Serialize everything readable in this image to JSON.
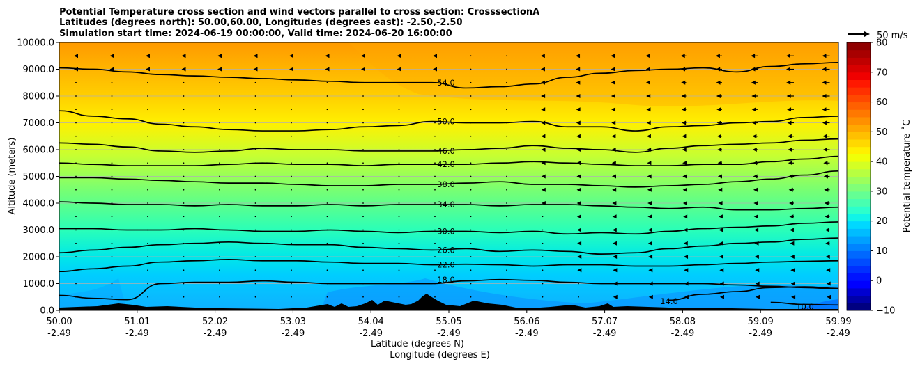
{
  "chart_data": {
    "type": "heatmap",
    "title": [
      "Potential Temperature cross section and wind vectors parallel to cross section: CrosssectionA",
      "Latitudes (degrees north): 50.00,60.00, Longitudes (degrees east): -2.50,-2.50",
      "Simulation start time: 2024-06-19 00:00:00, Valid time: 2024-06-20 16:00:00"
    ],
    "ylabel": "Altitude (meters)",
    "xlabel": "Latitude (degrees N)",
    "xlabel2": "Longitude (degrees E)",
    "ylim": [
      0,
      10000
    ],
    "yticks": [
      "0.0",
      "1000.0",
      "2000.0",
      "3000.0",
      "4000.0",
      "5000.0",
      "6000.0",
      "7000.0",
      "8000.0",
      "9000.0",
      "10000.0"
    ],
    "xticks": [
      {
        "lat": "50.00",
        "lon": "-2.49"
      },
      {
        "lat": "51.01",
        "lon": "-2.49"
      },
      {
        "lat": "52.02",
        "lon": "-2.49"
      },
      {
        "lat": "53.03",
        "lon": "-2.49"
      },
      {
        "lat": "54.04",
        "lon": "-2.49"
      },
      {
        "lat": "55.05",
        "lon": "-2.49"
      },
      {
        "lat": "56.06",
        "lon": "-2.49"
      },
      {
        "lat": "57.07",
        "lon": "-2.49"
      },
      {
        "lat": "58.08",
        "lon": "-2.49"
      },
      {
        "lat": "59.09",
        "lon": "-2.49"
      },
      {
        "lat": "59.99",
        "lon": "-2.49"
      }
    ],
    "grid": true,
    "colorbar": {
      "label": "Potential temperature ˚C",
      "min": -10,
      "max": 80,
      "ticks": [
        "−10",
        "0",
        "10",
        "20",
        "30",
        "40",
        "50",
        "60",
        "70",
        "80"
      ]
    },
    "quiver_key": "50 m/s",
    "contours": [
      {
        "label": "10.0",
        "values": [
          null,
          null,
          null,
          null,
          null,
          null,
          null,
          null,
          null,
          null,
          null,
          null,
          null,
          null,
          null,
          null,
          null,
          null,
          null,
          null,
          null,
          300,
          220,
          200
        ]
      },
      {
        "label": "14.0",
        "values": [
          null,
          null,
          null,
          null,
          null,
          null,
          null,
          null,
          null,
          null,
          null,
          null,
          null,
          null,
          null,
          null,
          null,
          null,
          380,
          600,
          700,
          850,
          880,
          820
        ]
      },
      {
        "label": "18.0",
        "values": [
          560,
          450,
          400,
          1000,
          1050,
          1050,
          1100,
          1050,
          1000,
          1000,
          1000,
          1000,
          1100,
          1150,
          1120,
          1050,
          1000,
          1000,
          1000,
          1000,
          950,
          900,
          850,
          800
        ]
      },
      {
        "label": "22.0",
        "values": [
          1450,
          1550,
          1650,
          1800,
          1850,
          1900,
          1850,
          1850,
          1800,
          1750,
          1750,
          1700,
          1720,
          1700,
          1650,
          1700,
          1700,
          1650,
          1650,
          1700,
          1750,
          1800,
          1830,
          1850
        ]
      },
      {
        "label": "26.0",
        "values": [
          2150,
          2250,
          2350,
          2450,
          2500,
          2550,
          2500,
          2450,
          2450,
          2350,
          2300,
          2250,
          2300,
          2200,
          2250,
          2200,
          2100,
          2150,
          2300,
          2400,
          2500,
          2550,
          2650,
          2700
        ]
      },
      {
        "label": "30.0",
        "values": [
          3050,
          3050,
          3000,
          3000,
          3050,
          3000,
          2950,
          2950,
          3000,
          2950,
          2900,
          2950,
          2950,
          2900,
          2950,
          2850,
          2900,
          2850,
          2950,
          3050,
          3100,
          3150,
          3250,
          3300
        ]
      },
      {
        "label": "34.0",
        "values": [
          4050,
          4000,
          3950,
          3950,
          3900,
          3950,
          3900,
          3900,
          3950,
          3900,
          3950,
          3950,
          3950,
          3900,
          3950,
          3950,
          3900,
          3850,
          3800,
          3850,
          3750,
          3750,
          3800,
          3850
        ]
      },
      {
        "label": "38.0",
        "values": [
          4950,
          4950,
          4900,
          4850,
          4800,
          4750,
          4750,
          4700,
          4650,
          4650,
          4700,
          4700,
          4750,
          4800,
          4700,
          4700,
          4650,
          4600,
          4650,
          4700,
          4800,
          4900,
          5050,
          5200
        ]
      },
      {
        "label": "42.0",
        "values": [
          5500,
          5450,
          5400,
          5400,
          5400,
          5450,
          5500,
          5450,
          5450,
          5400,
          5450,
          5450,
          5450,
          5500,
          5550,
          5500,
          5450,
          5400,
          5400,
          5450,
          5450,
          5550,
          5650,
          5750
        ]
      },
      {
        "label": "46.0",
        "values": [
          6250,
          6200,
          6100,
          5950,
          5900,
          5950,
          6050,
          6000,
          6000,
          5950,
          5950,
          5950,
          6000,
          6050,
          6150,
          6050,
          6000,
          5900,
          6050,
          6150,
          6200,
          6250,
          6350,
          6400
        ]
      },
      {
        "label": "50.0",
        "values": [
          7450,
          7250,
          7150,
          6950,
          6850,
          6750,
          6700,
          6700,
          6750,
          6850,
          6900,
          7050,
          7000,
          7000,
          7050,
          6850,
          6850,
          6700,
          6850,
          6900,
          7000,
          7050,
          7200,
          7250
        ]
      },
      {
        "label": "54.0",
        "values": [
          9050,
          9000,
          8900,
          8800,
          8750,
          8700,
          8650,
          8600,
          8550,
          8500,
          8500,
          8500,
          8300,
          8350,
          8450,
          8700,
          8850,
          8950,
          9000,
          9050,
          8900,
          9100,
          9200,
          9250
        ]
      }
    ]
  }
}
